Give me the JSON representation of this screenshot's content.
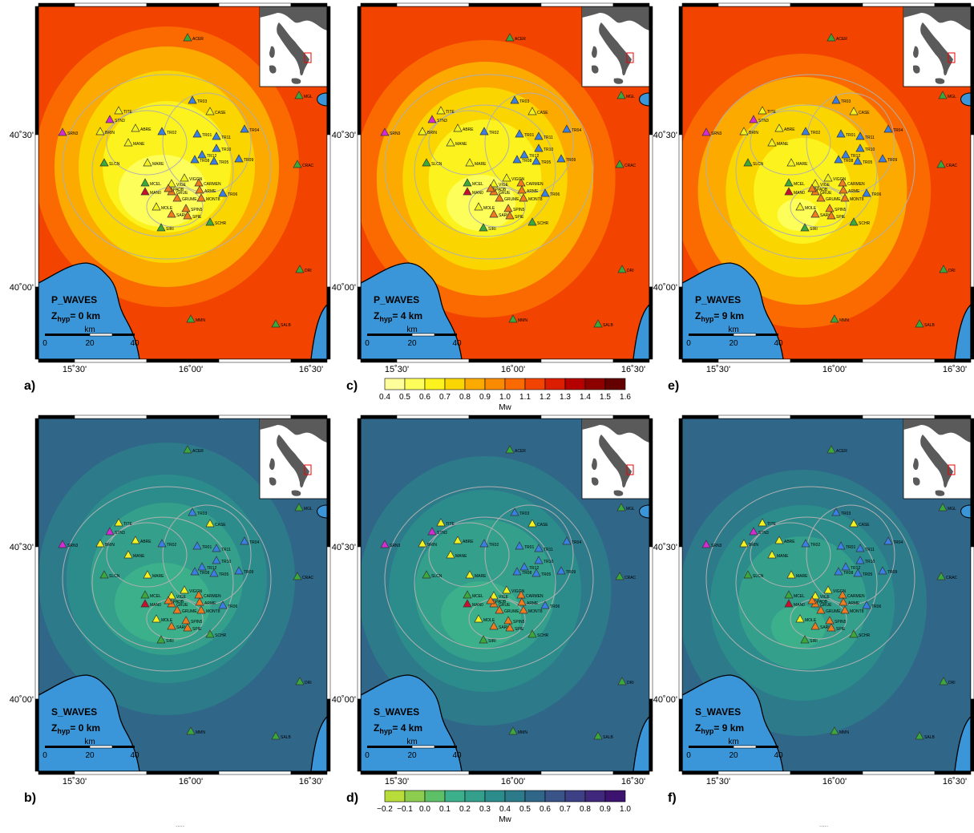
{
  "panels": [
    {
      "id": "a",
      "label": "a)",
      "wave": "P_WAVES",
      "z": "0",
      "scheme": "p",
      "stage": 0
    },
    {
      "id": "b",
      "label": "b)",
      "wave": "S_WAVES",
      "z": "0",
      "scheme": "s",
      "stage": 0
    },
    {
      "id": "c",
      "label": "c)",
      "wave": "P_WAVES",
      "z": "4",
      "scheme": "p",
      "stage": 1
    },
    {
      "id": "d",
      "label": "d)",
      "wave": "S_WAVES",
      "z": "4",
      "scheme": "s",
      "stage": 1
    },
    {
      "id": "e",
      "label": "e)",
      "wave": "P_WAVES",
      "z": "9",
      "scheme": "p",
      "stage": 2
    },
    {
      "id": "f",
      "label": "f)",
      "wave": "S_WAVES",
      "z": "9",
      "scheme": "s",
      "stage": 2
    }
  ],
  "map_text": {
    "inset_country": "Italy",
    "z_prefix": "Z",
    "z_sub": "hyp",
    "z_unit": " km",
    "scale_unit": "km",
    "scale_ticks": [
      "0",
      "20",
      "40"
    ],
    "lat_ticks": [
      "40˚30'",
      "40˚00'"
    ],
    "lon_ticks": [
      "15˚30'",
      "16˚00'",
      "16˚30'"
    ]
  },
  "stations": [
    {
      "name": "ACER",
      "type": "green"
    },
    {
      "name": "MGL",
      "type": "green"
    },
    {
      "name": "TITE",
      "type": "yellow"
    },
    {
      "name": "STN3",
      "type": "magenta"
    },
    {
      "name": "SRN3",
      "type": "magenta"
    },
    {
      "name": "BRIN",
      "type": "yellow"
    },
    {
      "name": "ABRE",
      "type": "yellow"
    },
    {
      "name": "MANE",
      "type": "yellow"
    },
    {
      "name": "TR02",
      "type": "blue"
    },
    {
      "name": "TR03",
      "type": "blue"
    },
    {
      "name": "CASE",
      "type": "yellow"
    },
    {
      "name": "TR01",
      "type": "blue"
    },
    {
      "name": "TR11",
      "type": "blue"
    },
    {
      "name": "TR04",
      "type": "blue"
    },
    {
      "name": "TR10",
      "type": "blue"
    },
    {
      "name": "TR12",
      "type": "blue"
    },
    {
      "name": "TR08",
      "type": "blue"
    },
    {
      "name": "TR05",
      "type": "blue"
    },
    {
      "name": "TR09",
      "type": "blue"
    },
    {
      "name": "SLCN",
      "type": "green"
    },
    {
      "name": "MARE",
      "type": "yellow"
    },
    {
      "name": "CRAC",
      "type": "green"
    },
    {
      "name": "MCEL",
      "type": "green"
    },
    {
      "name": "VIGGN",
      "type": "yellow"
    },
    {
      "name": "VIGE",
      "type": "yellow"
    },
    {
      "name": "CARMEN",
      "type": "orange"
    },
    {
      "name": "ARME",
      "type": "orange"
    },
    {
      "name": "MAN0",
      "type": "red"
    },
    {
      "name": "GRUE",
      "type": "orange"
    },
    {
      "name": "PADB",
      "type": "orange"
    },
    {
      "name": "GRUME",
      "type": "orange"
    },
    {
      "name": "MONT8",
      "type": "orange"
    },
    {
      "name": "TR06",
      "type": "blue"
    },
    {
      "name": "MOLE",
      "type": "yellow"
    },
    {
      "name": "SPIN5",
      "type": "orange"
    },
    {
      "name": "SARIO",
      "type": "orange"
    },
    {
      "name": "SPIE",
      "type": "orange"
    },
    {
      "name": "SCHR",
      "type": "green"
    },
    {
      "name": "SIRI",
      "type": "green"
    },
    {
      "name": "DRI",
      "type": "green"
    },
    {
      "name": "MMN",
      "type": "green"
    },
    {
      "name": "SALB",
      "type": "green"
    },
    {
      "name": "SPIE",
      "type": "green"
    }
  ],
  "colors": {
    "sea": "#3a96d8",
    "coast": "#000000",
    "station_green": "#3aa83a",
    "station_yellow": "#f2f21e",
    "station_blue": "#3a7fe6",
    "station_magenta": "#d52bd5",
    "station_orange": "#f07a1e",
    "station_red": "#c8102e",
    "p_palette": [
      "#fefec8",
      "#fefe9b",
      "#fefe5a",
      "#fcf21e",
      "#fad500",
      "#fcaa00",
      "#fa8a00",
      "#fa6a00",
      "#f24400",
      "#dc1e00",
      "#b40000",
      "#8c0000",
      "#640000",
      "#3c0000"
    ],
    "s_palette": [
      "#e6e61e",
      "#b8dc3a",
      "#8ccd50",
      "#5ec066",
      "#3cb08a",
      "#34a08c",
      "#2c8c8c",
      "#2c7a8a",
      "#306688",
      "#3a5488",
      "#3e4086",
      "#40287c",
      "#3c1470",
      "#2c0a5a"
    ]
  },
  "colorbars": {
    "p": {
      "ticks": [
        "0.4",
        "0.5",
        "0.6",
        "0.7",
        "0.8",
        "0.9",
        "1.0",
        "1.1",
        "1.2",
        "1.3",
        "1.4",
        "1.5",
        "1.6"
      ],
      "title": "Mw"
    },
    "s": {
      "ticks": [
        "−0.2",
        "−0.1",
        "0.0",
        "0.1",
        "0.2",
        "0.3",
        "0.4",
        "0.5",
        "0.6",
        "0.7",
        "0.8",
        "0.9",
        "1.0"
      ],
      "title": "Mw"
    }
  }
}
